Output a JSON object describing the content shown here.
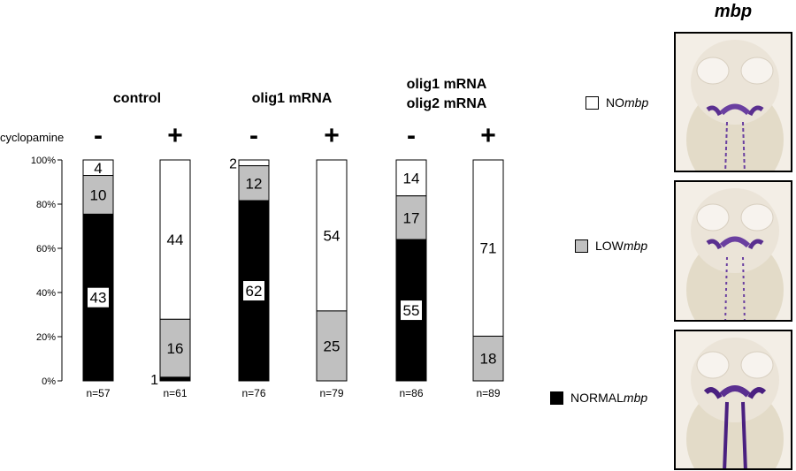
{
  "chart_data": {
    "type": "bar",
    "stacked": true,
    "normalized_percent": true,
    "yticks": [
      "0%",
      "20%",
      "40%",
      "60%",
      "80%",
      "100%"
    ],
    "ylim": [
      0,
      100
    ],
    "row_label": "cyclopamine",
    "groups": [
      {
        "label": "control",
        "label_lines": [
          "control"
        ]
      },
      {
        "label": "olig1 mRNA",
        "label_lines": [
          "olig1 mRNA"
        ]
      },
      {
        "label": "olig1 mRNA olig2 mRNA",
        "label_lines": [
          "olig1 mRNA",
          "olig2 mRNA"
        ]
      }
    ],
    "bars": [
      {
        "group": 0,
        "cyclopamine": "-",
        "n": "n=57",
        "normal": 43,
        "low": 10,
        "no": 4
      },
      {
        "group": 0,
        "cyclopamine": "+",
        "n": "n=61",
        "normal": 1,
        "low": 16,
        "no": 44
      },
      {
        "group": 1,
        "cyclopamine": "-",
        "n": "n=76",
        "normal": 62,
        "low": 12,
        "no": 2
      },
      {
        "group": 1,
        "cyclopamine": "+",
        "n": "n=79",
        "normal": 0,
        "low": 25,
        "no": 54
      },
      {
        "group": 2,
        "cyclopamine": "-",
        "n": "n=86",
        "normal": 55,
        "low": 17,
        "no": 14
      },
      {
        "group": 2,
        "cyclopamine": "+",
        "n": "n=89",
        "normal": 0,
        "low": 18,
        "no": 71
      }
    ],
    "colors": {
      "normal": "#000000",
      "low": "#c0c0c0",
      "no": "#ffffff"
    }
  },
  "legend": {
    "no": {
      "text": "NO ",
      "italic": "mbp"
    },
    "low": {
      "text": "LOW ",
      "italic": "mbp"
    },
    "normal": {
      "text": "NORMAL ",
      "italic": "mbp"
    }
  },
  "images": {
    "title": "mbp",
    "panels": [
      "no-mbp-embryo",
      "low-mbp-embryo",
      "normal-mbp-embryo"
    ]
  }
}
